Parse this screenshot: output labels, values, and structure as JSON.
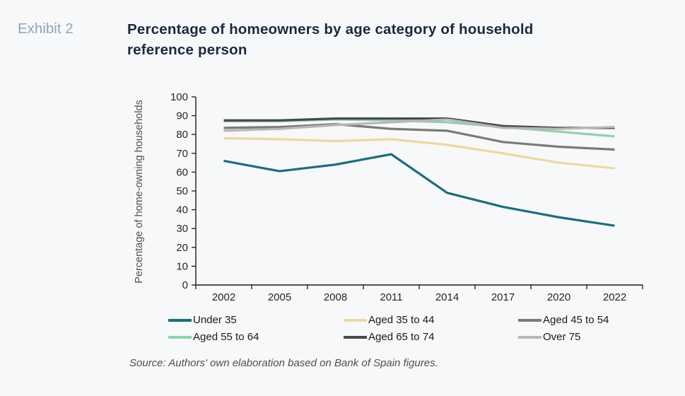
{
  "header": {
    "exhibit": "Exhibit 2",
    "title": "Percentage of homeowners by age category of household reference person"
  },
  "source": "Source: Authors' own elaboration based on Bank of Spain figures.",
  "colors": {
    "background": "#f7f8f9",
    "title_text": "#1b2940",
    "exhibit_text": "#8fa5ba",
    "axis": "#1a1a1a",
    "muted_text": "#4f4f4f"
  },
  "chart_data": {
    "type": "line",
    "title": "Percentage of homeowners by age category of household reference person",
    "categories": [
      "2002",
      "2005",
      "2008",
      "2011",
      "2014",
      "2017",
      "2020",
      "2022"
    ],
    "series": [
      {
        "name": "Under 35",
        "color": "#1d6d7c",
        "values": [
          66,
          60.5,
          64,
          69.5,
          49,
          41.5,
          36,
          31.5
        ]
      },
      {
        "name": "Aged 35 to 44",
        "color": "#ecd9a2",
        "values": [
          78,
          77.5,
          76.5,
          77.5,
          74.5,
          70,
          65,
          62
        ]
      },
      {
        "name": "Aged 45 to 54",
        "color": "#7a7a7a",
        "values": [
          83.5,
          84,
          85.5,
          83,
          82,
          76,
          73.5,
          72
        ]
      },
      {
        "name": "Aged 55 to 64",
        "color": "#92d1ad",
        "values": [
          87,
          87,
          88,
          87.5,
          86.5,
          84,
          81.5,
          79
        ]
      },
      {
        "name": "Aged 65 to 74",
        "color": "#4a4a4a",
        "values": [
          87.5,
          87.5,
          88.5,
          88.5,
          88.5,
          84.5,
          83.5,
          83.5
        ]
      },
      {
        "name": "Over 75",
        "color": "#b7b7b7",
        "values": [
          82,
          83,
          85,
          86.5,
          88,
          83.5,
          83,
          84
        ]
      }
    ],
    "xlabel": "",
    "ylabel": "Percentage of home-owning households",
    "ylim": [
      0,
      100
    ],
    "yticks": [
      0,
      10,
      20,
      30,
      40,
      50,
      60,
      70,
      80,
      90,
      100
    ],
    "grid": false,
    "legend_position": "bottom"
  }
}
